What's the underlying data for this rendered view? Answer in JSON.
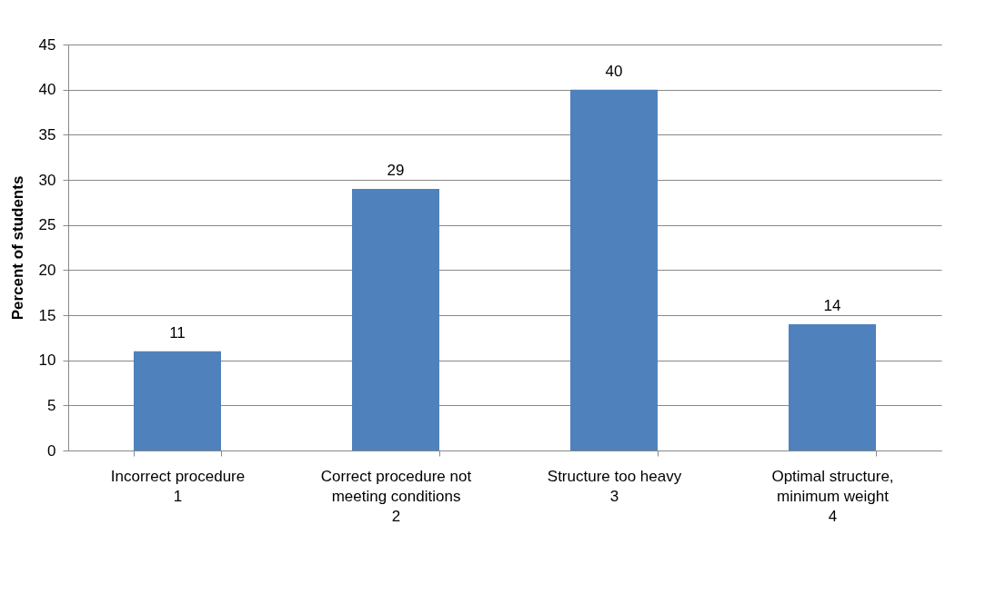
{
  "chart_data": {
    "type": "bar",
    "ylabel": "Percent of students",
    "categories": [
      "Incorrect procedure\n1",
      "Correct procedure not\nmeeting conditions\n2",
      "Structure too heavy\n3",
      "Optimal structure,\nminimum weight\n4"
    ],
    "values": [
      11,
      29,
      40,
      14
    ],
    "color": "#4f81bd",
    "ylim": [
      0,
      45
    ],
    "yticks": [
      0,
      5,
      10,
      15,
      20,
      25,
      30,
      35,
      40,
      45
    ],
    "grid": "y",
    "data_labels": true
  }
}
